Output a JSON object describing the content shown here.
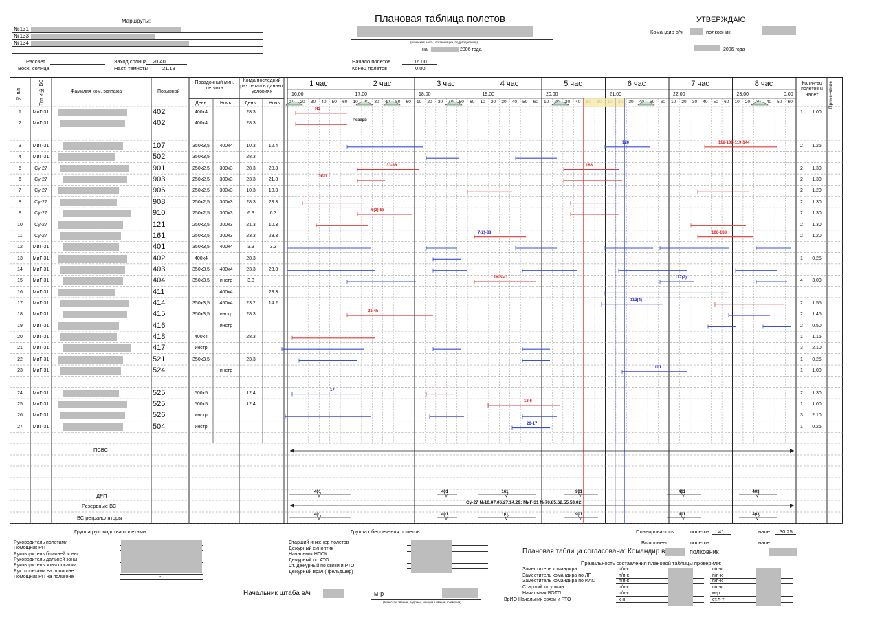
{
  "header": {
    "title": "Плановая таблица полетов",
    "subtitle": "(воинская часть, организация, подразделения)",
    "date_prefix": "на",
    "date_year": "2006 года",
    "routes_label": "Маршруты:",
    "routes": [
      "№131",
      "№133",
      "№134"
    ],
    "sunrise_label": "Рассвет",
    "sunset_label": "Заход солнца",
    "sunset_value": "20.40",
    "sunup_label": "Восх. солнца",
    "dark_label": "Наст. темноты",
    "dark_value": "21.18",
    "flights_start_label": "Начало полетов",
    "flights_start_value": "16.00",
    "flights_end_label": "Конец полетов",
    "flights_end_value": "0.00",
    "approve_label": "УТВЕРЖДАЮ",
    "commander_label": "Командир в/ч",
    "rank_label": "полковник",
    "approve_year": "2006 года"
  },
  "table_headers": {
    "num": "№ п/п",
    "type": "Тип и № ВС",
    "name": "Фамилия ком. экипажа",
    "callsign": "Позывной",
    "min": "Посадочный мин. летчика",
    "day": "День",
    "night": "Ночь",
    "last": "Когда последний раз летал в данных условиях",
    "count": "Колич-во полетов и налёт",
    "note": "Приме-чание"
  },
  "hours": [
    {
      "label": "1 час",
      "time": "16.00"
    },
    {
      "label": "2 час",
      "time": "17.00"
    },
    {
      "label": "3 час",
      "time": "18.00"
    },
    {
      "label": "4 час",
      "time": "19.00"
    },
    {
      "label": "5 час",
      "time": "20.00"
    },
    {
      "label": "6 час",
      "time": "21.00"
    },
    {
      "label": "7 час",
      "time": "22.00"
    },
    {
      "label": "8 час",
      "time": "23.00",
      "end": "0.00"
    }
  ],
  "minute_ticks": [
    "10",
    "20",
    "30",
    "40",
    "50",
    "60"
  ],
  "rows": [
    {
      "n": "1",
      "type": "МиГ-31",
      "call": "402",
      "day": "400x4",
      "night": "",
      "ld": "28.3",
      "ln": "",
      "cnt": "1",
      "hrs": "1.00"
    },
    {
      "n": "2",
      "type": "МиГ-31",
      "call": "402",
      "day": "400x4",
      "night": "",
      "ld": "28.3",
      "ln": "",
      "cnt": "",
      "hrs": ""
    },
    {
      "n": "3",
      "type": "МиГ-31",
      "call": "107",
      "day": "350x3,5",
      "night": "400x4",
      "ld": "10.3",
      "ln": "12.4",
      "cnt": "2",
      "hrs": "1.25"
    },
    {
      "n": "4",
      "type": "МиГ-31",
      "call": "502",
      "day": "350x3,5",
      "night": "",
      "ld": "28.3",
      "ln": "",
      "cnt": "",
      "hrs": ""
    },
    {
      "n": "5",
      "type": "Су-27",
      "call": "901",
      "day": "250x2,5",
      "night": "300x3",
      "ld": "28.3",
      "ln": "28.3",
      "cnt": "2",
      "hrs": "1.30"
    },
    {
      "n": "6",
      "type": "Су-27",
      "call": "903",
      "day": "250x2,5",
      "night": "300x3",
      "ld": "23.3",
      "ln": "21.3",
      "cnt": "2",
      "hrs": "1.30"
    },
    {
      "n": "7",
      "type": "Су-27",
      "call": "906",
      "day": "250x2,5",
      "night": "300x3",
      "ld": "10.3",
      "ln": "10.3",
      "cnt": "2",
      "hrs": "1.20"
    },
    {
      "n": "8",
      "type": "Су-27",
      "call": "908",
      "day": "250x2,5",
      "night": "300x3",
      "ld": "28.3",
      "ln": "23.3",
      "cnt": "2",
      "hrs": "1.30"
    },
    {
      "n": "9",
      "type": "Су-27",
      "call": "910",
      "day": "250x2,5",
      "night": "300x3",
      "ld": "6.3",
      "ln": "6.3",
      "cnt": "2",
      "hrs": "1.30"
    },
    {
      "n": "10",
      "type": "Су-27",
      "call": "121",
      "day": "250x2,5",
      "night": "300x3",
      "ld": "21.3",
      "ln": "10.3",
      "cnt": "2",
      "hrs": "1.30"
    },
    {
      "n": "11",
      "type": "Су-27",
      "call": "161",
      "day": "250x2,5",
      "night": "300x3",
      "ld": "23.3",
      "ln": "23.3",
      "cnt": "2",
      "hrs": "1.20"
    },
    {
      "n": "12",
      "type": "МиГ-31",
      "call": "401",
      "day": "350x3,5",
      "night": "400x4",
      "ld": "3.3",
      "ln": "3.3",
      "cnt": "",
      "hrs": ""
    },
    {
      "n": "13",
      "type": "МиГ-31",
      "call": "402",
      "day": "400x4",
      "night": "",
      "ld": "28.3",
      "ln": "",
      "cnt": "1",
      "hrs": "0.25"
    },
    {
      "n": "14",
      "type": "МиГ-31",
      "call": "403",
      "day": "350x3,5",
      "night": "400x4",
      "ld": "23.3",
      "ln": "23.3",
      "cnt": "",
      "hrs": ""
    },
    {
      "n": "15",
      "type": "МиГ-31",
      "call": "404",
      "day": "350x3,5",
      "night": "инстр",
      "ld": "3.3",
      "ln": "",
      "cnt": "4",
      "hrs": "3.00"
    },
    {
      "n": "16",
      "type": "МиГ-31",
      "call": "411",
      "day": "",
      "night": "400x4",
      "ld": "",
      "ln": "23.3",
      "cnt": "",
      "hrs": ""
    },
    {
      "n": "17",
      "type": "МиГ-31",
      "call": "414",
      "day": "350x3,5",
      "night": "450x4",
      "ld": "23.2",
      "ln": "14.2",
      "cnt": "2",
      "hrs": "1.55"
    },
    {
      "n": "18",
      "type": "МиГ-31",
      "call": "415",
      "day": "350x3,5",
      "night": "инстр",
      "ld": "28.3",
      "ln": "",
      "cnt": "2",
      "hrs": "1.45"
    },
    {
      "n": "19",
      "type": "МиГ-31",
      "call": "416",
      "day": "",
      "night": "инстр",
      "ld": "",
      "ln": "",
      "cnt": "2",
      "hrs": "0.50"
    },
    {
      "n": "20",
      "type": "МиГ-31",
      "call": "418",
      "day": "400x4",
      "night": "",
      "ld": "28.3",
      "ln": "",
      "cnt": "1",
      "hrs": "1.15"
    },
    {
      "n": "21",
      "type": "МиГ-31",
      "call": "417",
      "day": "инстр",
      "night": "",
      "ld": "",
      "ln": "",
      "cnt": "3",
      "hrs": "2.10"
    },
    {
      "n": "22",
      "type": "МиГ-31",
      "call": "521",
      "day": "350x3,5",
      "night": "",
      "ld": "23.3",
      "ln": "",
      "cnt": "1",
      "hrs": "0.25"
    },
    {
      "n": "23",
      "type": "МиГ-31",
      "call": "524",
      "day": "",
      "night": "инстр",
      "ld": "",
      "ln": "",
      "cnt": "1",
      "hrs": "1.00"
    },
    {
      "n": "24",
      "type": "МиГ-31",
      "call": "525",
      "day": "500x5",
      "night": "",
      "ld": "12.4",
      "ln": "",
      "cnt": "2",
      "hrs": "1.30"
    },
    {
      "n": "25",
      "type": "МиГ-31",
      "call": "525",
      "day": "500x5",
      "night": "",
      "ld": "12.4",
      "ln": "",
      "cnt": "1",
      "hrs": "1.00"
    },
    {
      "n": "26",
      "type": "МиГ-31",
      "call": "526",
      "day": "инстр",
      "night": "",
      "ld": "",
      "ln": "",
      "cnt": "3",
      "hrs": "2.10"
    },
    {
      "n": "27",
      "type": "МиГ-31",
      "call": "504",
      "day": "инстр",
      "night": "",
      "ld": "",
      "ln": "",
      "cnt": "1",
      "hrs": "0.25"
    }
  ],
  "timeline_labels": [
    {
      "t": "ЯЗ",
      "c": "red"
    },
    {
      "t": "Резерв",
      "c": "dark"
    },
    {
      "t": "33-88",
      "c": "red"
    },
    {
      "t": "ОБЛ",
      "c": "red"
    },
    {
      "t": "6(2)-88",
      "c": "red"
    },
    {
      "t": "7(2)-88",
      "c": "blue"
    },
    {
      "t": "18-6-41",
      "c": "red"
    },
    {
      "t": "21-45",
      "c": "red"
    },
    {
      "t": "120",
      "c": "blue"
    },
    {
      "t": "188",
      "c": "red"
    },
    {
      "t": "118-106-119-144",
      "c": "red"
    },
    {
      "t": "106-188",
      "c": "red"
    },
    {
      "t": "117(2)",
      "c": "blue"
    },
    {
      "t": "113(4)",
      "c": "blue"
    },
    {
      "t": "101",
      "c": "blue"
    },
    {
      "t": "18-6",
      "c": "red"
    },
    {
      "t": "20-17",
      "c": "blue"
    },
    {
      "t": "17",
      "c": "blue"
    }
  ],
  "bottom_rows": {
    "psvs": "ПСВС",
    "drp": "ДРП",
    "reserve": "Резервные ВС",
    "reserve_text": "Су-27 №10,07,06,27,14,29; МиГ-31 №70,85,62,55,53,02;",
    "retrans": "ВС ретрансляторы",
    "markers": [
      "401",
      "401",
      "161",
      "901",
      "401",
      "403"
    ]
  },
  "footer": {
    "group_left_title": "Группа руководства полетами",
    "group_left": [
      "Руководитель полетами",
      "Помощник РП",
      "Руководитель ближней зоны",
      "Руководитель дальней зоны",
      "Руководитель зоны посадки",
      "Рук. полетами на полигоне",
      "Помощник РП на полигоне"
    ],
    "dash": "-",
    "group_mid_title": "Группа обеспечения полетов",
    "group_mid": [
      "Старший инженер полетов",
      "Дежурный синоптик",
      "Начальник НПСК",
      "Дежурный по АТО",
      "Ст. дежурный по связи и РТО",
      "Дежурный врач ( фельдшер)"
    ],
    "chief_label": "Начальник штаба в/ч",
    "chief_rank": "м-р",
    "chief_caption": "(воинское звание, подпись, инициал имени, фамилия)",
    "planned_label": "Планировалось:",
    "flights_label": "полетов",
    "planned_flights": "41",
    "hours_label": "налет",
    "planned_hours": "30.25",
    "done_label": "Выполнено:",
    "agreed": "Плановая таблица согласована: Командир в/ч",
    "agreed_rank": "полковник",
    "checked_title": "Правильность составления плановой таблицы проверили:",
    "checked": [
      {
        "role": "Заместитель командира",
        "r1": "п/п-к",
        "r2": "п/п-к"
      },
      {
        "role": "Заместитель командира по ЛП",
        "r1": "п/п-к",
        "r2": "п/п-к"
      },
      {
        "role": "Заместитель командира по ИАС",
        "r1": "п/п-к",
        "r2": "п/п-к"
      },
      {
        "role": "Старший штурман",
        "r1": "п/п-к",
        "r2": "п/п-к"
      },
      {
        "role": "Начальник ВОТП",
        "r1": "п/п-к",
        "r2": "м-р"
      },
      {
        "role": "ВрИО  Начальник связи и РТО",
        "r1": "к-н",
        "r2": "ст.л-т"
      }
    ]
  }
}
